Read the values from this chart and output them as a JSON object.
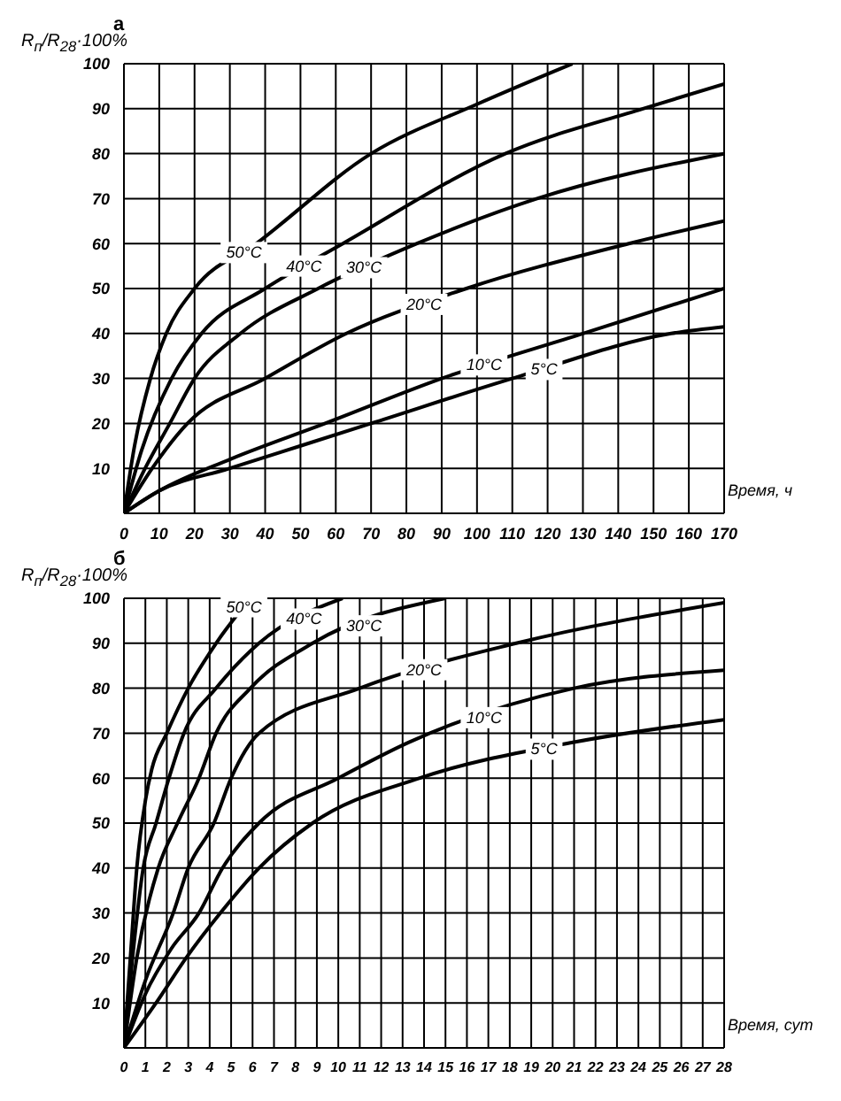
{
  "chart_data": [
    {
      "type": "line",
      "title": "а",
      "ylabel": "R$_{п}$/R$_{28}$·100%",
      "xlabel": "Время, ч",
      "xlim": [
        0,
        170
      ],
      "xticks": [
        0,
        10,
        20,
        30,
        40,
        50,
        60,
        70,
        80,
        90,
        100,
        110,
        120,
        130,
        140,
        150,
        160,
        170
      ],
      "ylim": [
        0,
        100
      ],
      "yticks": [
        10,
        20,
        30,
        40,
        50,
        60,
        70,
        80,
        90,
        100
      ],
      "grid": true,
      "series": [
        {
          "name": "50°C",
          "color": "#000000",
          "x": [
            0,
            3,
            7.5,
            12,
            20,
            37.5,
            70,
            100,
            127
          ],
          "values": [
            0,
            15,
            30,
            40,
            50,
            60,
            80,
            91,
            100
          ]
        },
        {
          "name": "40°C",
          "color": "#000000",
          "x": [
            0,
            5,
            13.5,
            22,
            40,
            62,
            108,
            147,
            170
          ],
          "values": [
            0,
            14,
            30,
            40,
            50,
            60,
            80,
            90,
            95.5
          ]
        },
        {
          "name": "30°C",
          "color": "#000000",
          "x": [
            0,
            6,
            13,
            20,
            33,
            55,
            83,
            117,
            170
          ],
          "values": [
            0,
            10,
            20,
            30,
            40,
            50,
            60,
            70,
            80
          ]
        },
        {
          "name": "20°C",
          "color": "#000000",
          "x": [
            0,
            8,
            18,
            40,
            63,
            97,
            143,
            170
          ],
          "values": [
            0,
            10,
            20,
            30,
            40,
            50,
            60,
            65
          ]
        },
        {
          "name": "10°C",
          "color": "#000000",
          "x": [
            0,
            10,
            30,
            57,
            90,
            130,
            170
          ],
          "values": [
            0,
            5,
            12,
            20,
            30,
            40,
            50
          ]
        },
        {
          "name": "5°C",
          "color": "#000000",
          "x": [
            0,
            10,
            30,
            70,
            110,
            155,
            170
          ],
          "values": [
            0,
            5,
            10,
            20,
            30,
            40,
            41.5
          ]
        }
      ]
    },
    {
      "type": "line",
      "title": "б",
      "ylabel": "R$_{п}$/R$_{28}$·100%",
      "xlabel": "Время, сут",
      "xlim": [
        0,
        28
      ],
      "xticks": [
        0,
        1,
        2,
        3,
        4,
        5,
        6,
        7,
        8,
        9,
        10,
        11,
        12,
        13,
        14,
        15,
        16,
        17,
        18,
        19,
        20,
        21,
        22,
        23,
        24,
        25,
        26,
        27,
        28
      ],
      "ylim": [
        0,
        100
      ],
      "yticks": [
        10,
        20,
        30,
        40,
        50,
        60,
        70,
        80,
        90,
        100
      ],
      "grid": true,
      "series": [
        {
          "name": "50°C",
          "color": "#000000",
          "x": [
            0,
            0.3,
            0.6,
            1,
            1.3,
            2,
            3,
            4.3,
            5.9
          ],
          "values": [
            0,
            20,
            40,
            55,
            62,
            70,
            80,
            90,
            100
          ]
        },
        {
          "name": "40°C",
          "color": "#000000",
          "x": [
            0,
            0.4,
            0.9,
            1.5,
            2.1,
            2.8,
            4.3,
            6.3,
            10.2
          ],
          "values": [
            0,
            20,
            40,
            50,
            60,
            70,
            80,
            90,
            100
          ]
        },
        {
          "name": "30°C",
          "color": "#000000",
          "x": [
            0,
            0.6,
            1.6,
            2.5,
            3.5,
            4.3,
            5.9,
            8.8,
            15
          ],
          "values": [
            0,
            20,
            40,
            50,
            60,
            70,
            80,
            90,
            100
          ]
        },
        {
          "name": "20°C",
          "color": "#000000",
          "x": [
            0,
            1,
            2.3,
            3,
            4.2,
            5,
            6.3,
            11,
            18.3,
            28
          ],
          "values": [
            0,
            15,
            30,
            40,
            50,
            60,
            70,
            80,
            90,
            99
          ]
        },
        {
          "name": "10°C",
          "color": "#000000",
          "x": [
            0,
            1,
            2.2,
            3.5,
            4.6,
            6.3,
            10,
            13.3,
            21,
            28
          ],
          "values": [
            0,
            12,
            22,
            30,
            40,
            50,
            60,
            68,
            80,
            84
          ]
        },
        {
          "name": "5°C",
          "color": "#000000",
          "x": [
            0,
            1.5,
            2.9,
            4.5,
            6.3,
            8.8,
            13.8,
            21,
            28
          ],
          "values": [
            0,
            10,
            20,
            30,
            40,
            50,
            60,
            68,
            73
          ]
        }
      ]
    }
  ]
}
